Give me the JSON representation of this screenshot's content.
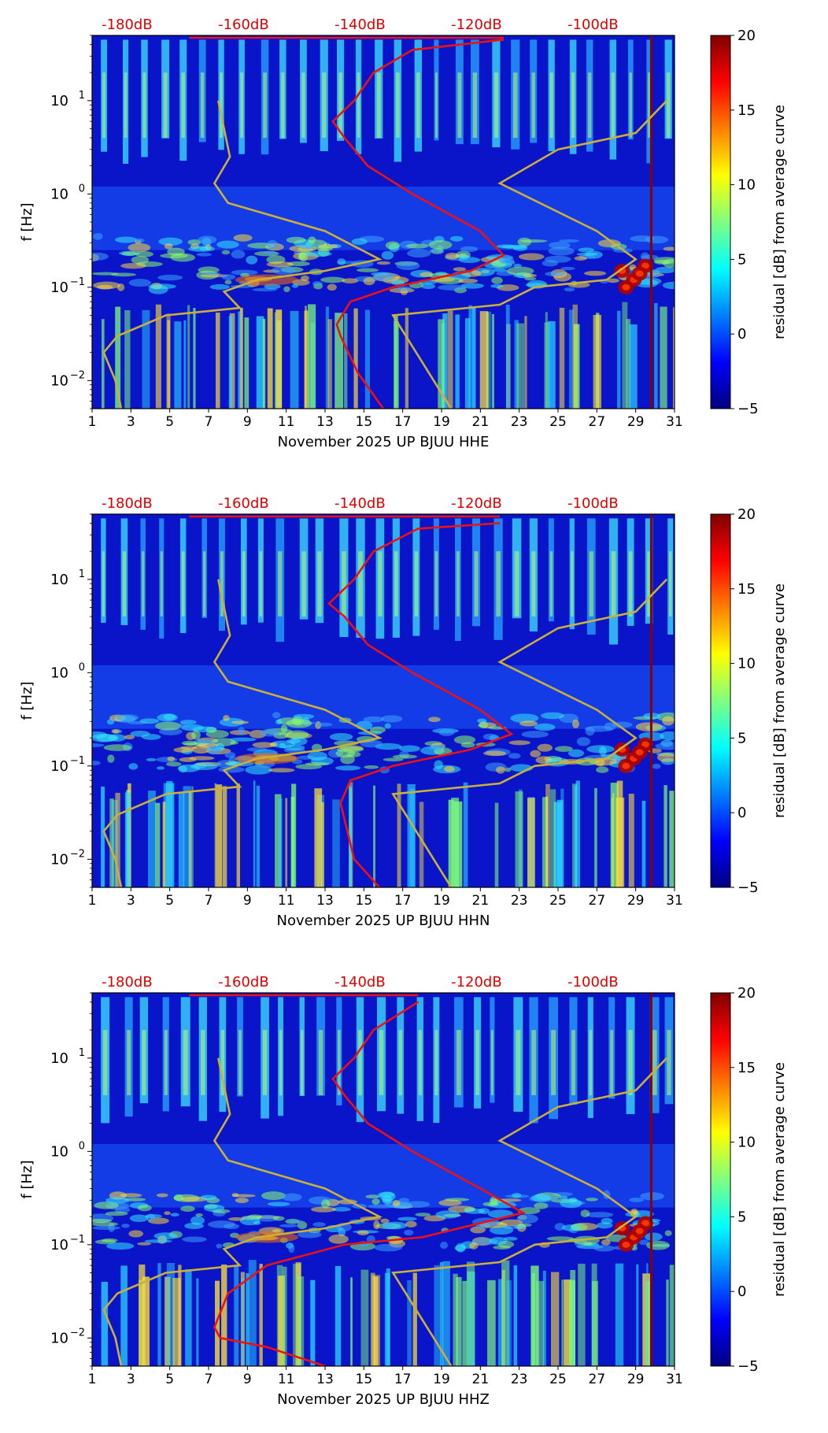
{
  "colors": {
    "curve_red": "#ee1111",
    "curve_gold": "#c8b03a",
    "top_label": "#e00000",
    "jet": [
      "#00007f",
      "#0000ff",
      "#007fff",
      "#00ffff",
      "#7fff7f",
      "#ffff00",
      "#ff7f00",
      "#ff0000",
      "#7f0000"
    ]
  },
  "chart_data": [
    {
      "type": "heatmap",
      "title": "",
      "xlabel": "November 2025 UP BJUU  HHE",
      "ylabel": "f [Hz]",
      "x_ticks": [
        "1",
        "3",
        "5",
        "7",
        "9",
        "11",
        "13",
        "15",
        "17",
        "19",
        "21",
        "23",
        "25",
        "27",
        "29",
        "31"
      ],
      "xlim": [
        1,
        31
      ],
      "y_scale": "log",
      "y_ticks": [
        0.01,
        0.1,
        1,
        10
      ],
      "y_tick_labels": [
        {
          "base": "10",
          "exp": "−2"
        },
        {
          "base": "10",
          "exp": "−1"
        },
        {
          "base": "10",
          "exp": "0"
        },
        {
          "base": "10",
          "exp": "1"
        }
      ],
      "ylim": [
        0.005,
        50
      ],
      "top_axis_labels": [
        "-180dB",
        "-160dB",
        "-140dB",
        "-120dB",
        "-100dB"
      ],
      "top_axis_days": [
        2.8,
        8.8,
        14.8,
        20.8,
        26.8
      ],
      "colorbar": {
        "label": "residual [dB] from average curve",
        "ticks": [
          "20",
          "15",
          "10",
          "5",
          "0",
          "−5"
        ],
        "range": [
          -5,
          20
        ]
      },
      "red_curve": [
        [
          16.0,
          0.005
        ],
        [
          14.7,
          0.012
        ],
        [
          13.8,
          0.03
        ],
        [
          13.6,
          0.04
        ],
        [
          14.3,
          0.07
        ],
        [
          16.5,
          0.1
        ],
        [
          20.5,
          0.15
        ],
        [
          22.2,
          0.22
        ],
        [
          21.0,
          0.4
        ],
        [
          17.5,
          1.0
        ],
        [
          15.2,
          2.0
        ],
        [
          14.0,
          4.0
        ],
        [
          13.4,
          6.0
        ],
        [
          14.5,
          10.0
        ],
        [
          15.5,
          20.0
        ],
        [
          17.5,
          35.0
        ],
        [
          22.2,
          45.0
        ]
      ],
      "gold_curve_left": [
        [
          2.5,
          0.005
        ],
        [
          2.2,
          0.01
        ],
        [
          1.6,
          0.02
        ],
        [
          2.3,
          0.03
        ],
        [
          4.8,
          0.05
        ],
        [
          8.6,
          0.06
        ],
        [
          7.8,
          0.09
        ],
        [
          9.5,
          0.12
        ],
        [
          13.0,
          0.15
        ],
        [
          15.8,
          0.2
        ],
        [
          13.0,
          0.4
        ],
        [
          8.0,
          0.8
        ],
        [
          7.3,
          1.3
        ],
        [
          8.1,
          2.5
        ],
        [
          7.5,
          10.0
        ]
      ],
      "gold_curve_right": [
        [
          19.5,
          0.005
        ],
        [
          16.5,
          0.05
        ],
        [
          22.0,
          0.065
        ],
        [
          23.8,
          0.1
        ],
        [
          27.5,
          0.12
        ],
        [
          29.0,
          0.2
        ],
        [
          27.0,
          0.4
        ],
        [
          22.0,
          1.3
        ],
        [
          25.0,
          3.0
        ],
        [
          29.0,
          4.5
        ],
        [
          30.6,
          10.0
        ]
      ]
    },
    {
      "type": "heatmap",
      "title": "",
      "xlabel": "November 2025 UP BJUU  HHN",
      "ylabel": "f [Hz]",
      "x_ticks": [
        "1",
        "3",
        "5",
        "7",
        "9",
        "11",
        "13",
        "15",
        "17",
        "19",
        "21",
        "23",
        "25",
        "27",
        "29",
        "31"
      ],
      "xlim": [
        1,
        31
      ],
      "y_scale": "log",
      "y_ticks": [
        0.01,
        0.1,
        1,
        10
      ],
      "y_tick_labels": [
        {
          "base": "10",
          "exp": "−2"
        },
        {
          "base": "10",
          "exp": "−1"
        },
        {
          "base": "10",
          "exp": "0"
        },
        {
          "base": "10",
          "exp": "1"
        }
      ],
      "ylim": [
        0.005,
        50
      ],
      "top_axis_labels": [
        "-180dB",
        "-160dB",
        "-140dB",
        "-120dB",
        "-100dB"
      ],
      "top_axis_days": [
        2.8,
        8.8,
        14.8,
        20.8,
        26.8
      ],
      "colorbar": {
        "label": "residual [dB] from average curve",
        "ticks": [
          "20",
          "15",
          "10",
          "5",
          "0",
          "−5"
        ],
        "range": [
          -5,
          20
        ]
      },
      "red_curve": [
        [
          15.8,
          0.005
        ],
        [
          14.5,
          0.01
        ],
        [
          13.8,
          0.04
        ],
        [
          14.3,
          0.07
        ],
        [
          16.5,
          0.1
        ],
        [
          20.5,
          0.15
        ],
        [
          22.6,
          0.22
        ],
        [
          21.0,
          0.4
        ],
        [
          17.5,
          1.0
        ],
        [
          15.2,
          2.0
        ],
        [
          14.0,
          4.0
        ],
        [
          13.2,
          5.5
        ],
        [
          14.5,
          10.0
        ],
        [
          15.5,
          20.0
        ],
        [
          17.8,
          35.0
        ],
        [
          22.0,
          40.0
        ]
      ],
      "gold_curve_left": [
        [
          2.5,
          0.005
        ],
        [
          2.2,
          0.01
        ],
        [
          1.6,
          0.02
        ],
        [
          2.3,
          0.03
        ],
        [
          4.8,
          0.05
        ],
        [
          8.6,
          0.06
        ],
        [
          7.8,
          0.09
        ],
        [
          9.5,
          0.12
        ],
        [
          13.0,
          0.15
        ],
        [
          15.8,
          0.2
        ],
        [
          13.0,
          0.4
        ],
        [
          8.0,
          0.8
        ],
        [
          7.3,
          1.3
        ],
        [
          8.1,
          2.5
        ],
        [
          7.5,
          10.0
        ]
      ],
      "gold_curve_right": [
        [
          19.5,
          0.005
        ],
        [
          16.5,
          0.05
        ],
        [
          22.0,
          0.065
        ],
        [
          23.8,
          0.1
        ],
        [
          27.5,
          0.12
        ],
        [
          29.0,
          0.2
        ],
        [
          27.0,
          0.4
        ],
        [
          22.0,
          1.3
        ],
        [
          25.0,
          3.0
        ],
        [
          29.0,
          4.5
        ],
        [
          30.6,
          10.0
        ]
      ]
    },
    {
      "type": "heatmap",
      "title": "",
      "xlabel": "November 2025 UP BJUU  HHZ",
      "ylabel": "f [Hz]",
      "x_ticks": [
        "1",
        "3",
        "5",
        "7",
        "9",
        "11",
        "13",
        "15",
        "17",
        "19",
        "21",
        "23",
        "25",
        "27",
        "29",
        "31"
      ],
      "xlim": [
        1,
        31
      ],
      "y_scale": "log",
      "y_ticks": [
        0.01,
        0.1,
        1,
        10
      ],
      "y_tick_labels": [
        {
          "base": "10",
          "exp": "−2"
        },
        {
          "base": "10",
          "exp": "−1"
        },
        {
          "base": "10",
          "exp": "0"
        },
        {
          "base": "10",
          "exp": "1"
        }
      ],
      "ylim": [
        0.005,
        50
      ],
      "top_axis_labels": [
        "-180dB",
        "-160dB",
        "-140dB",
        "-120dB",
        "-100dB"
      ],
      "top_axis_days": [
        2.8,
        8.8,
        14.8,
        20.8,
        26.8
      ],
      "colorbar": {
        "label": "residual [dB] from average curve",
        "ticks": [
          "20",
          "15",
          "10",
          "5",
          "0",
          "−5"
        ],
        "range": [
          -5,
          20
        ]
      },
      "red_curve": [
        [
          13.0,
          0.005
        ],
        [
          10.0,
          0.008
        ],
        [
          7.6,
          0.01
        ],
        [
          7.3,
          0.013
        ],
        [
          8.0,
          0.03
        ],
        [
          10.0,
          0.06
        ],
        [
          14.0,
          0.1
        ],
        [
          18.0,
          0.12
        ],
        [
          23.2,
          0.22
        ],
        [
          21.0,
          0.4
        ],
        [
          17.5,
          1.0
        ],
        [
          15.2,
          2.0
        ],
        [
          14.0,
          4.0
        ],
        [
          13.4,
          6.0
        ],
        [
          14.5,
          10.0
        ],
        [
          15.5,
          20.0
        ],
        [
          17.8,
          40.0
        ]
      ],
      "gold_curve_left": [
        [
          2.5,
          0.005
        ],
        [
          2.2,
          0.01
        ],
        [
          1.6,
          0.02
        ],
        [
          2.3,
          0.03
        ],
        [
          4.8,
          0.05
        ],
        [
          8.6,
          0.06
        ],
        [
          7.8,
          0.09
        ],
        [
          9.5,
          0.12
        ],
        [
          13.0,
          0.15
        ],
        [
          15.8,
          0.2
        ],
        [
          13.0,
          0.4
        ],
        [
          8.0,
          0.8
        ],
        [
          7.3,
          1.3
        ],
        [
          8.1,
          2.5
        ],
        [
          7.5,
          10.0
        ]
      ],
      "gold_curve_right": [
        [
          19.5,
          0.005
        ],
        [
          16.5,
          0.05
        ],
        [
          22.0,
          0.065
        ],
        [
          23.8,
          0.1
        ],
        [
          27.5,
          0.12
        ],
        [
          29.0,
          0.2
        ],
        [
          27.0,
          0.4
        ],
        [
          22.0,
          1.3
        ],
        [
          25.0,
          3.0
        ],
        [
          29.0,
          4.5
        ],
        [
          30.6,
          10.0
        ]
      ]
    }
  ]
}
